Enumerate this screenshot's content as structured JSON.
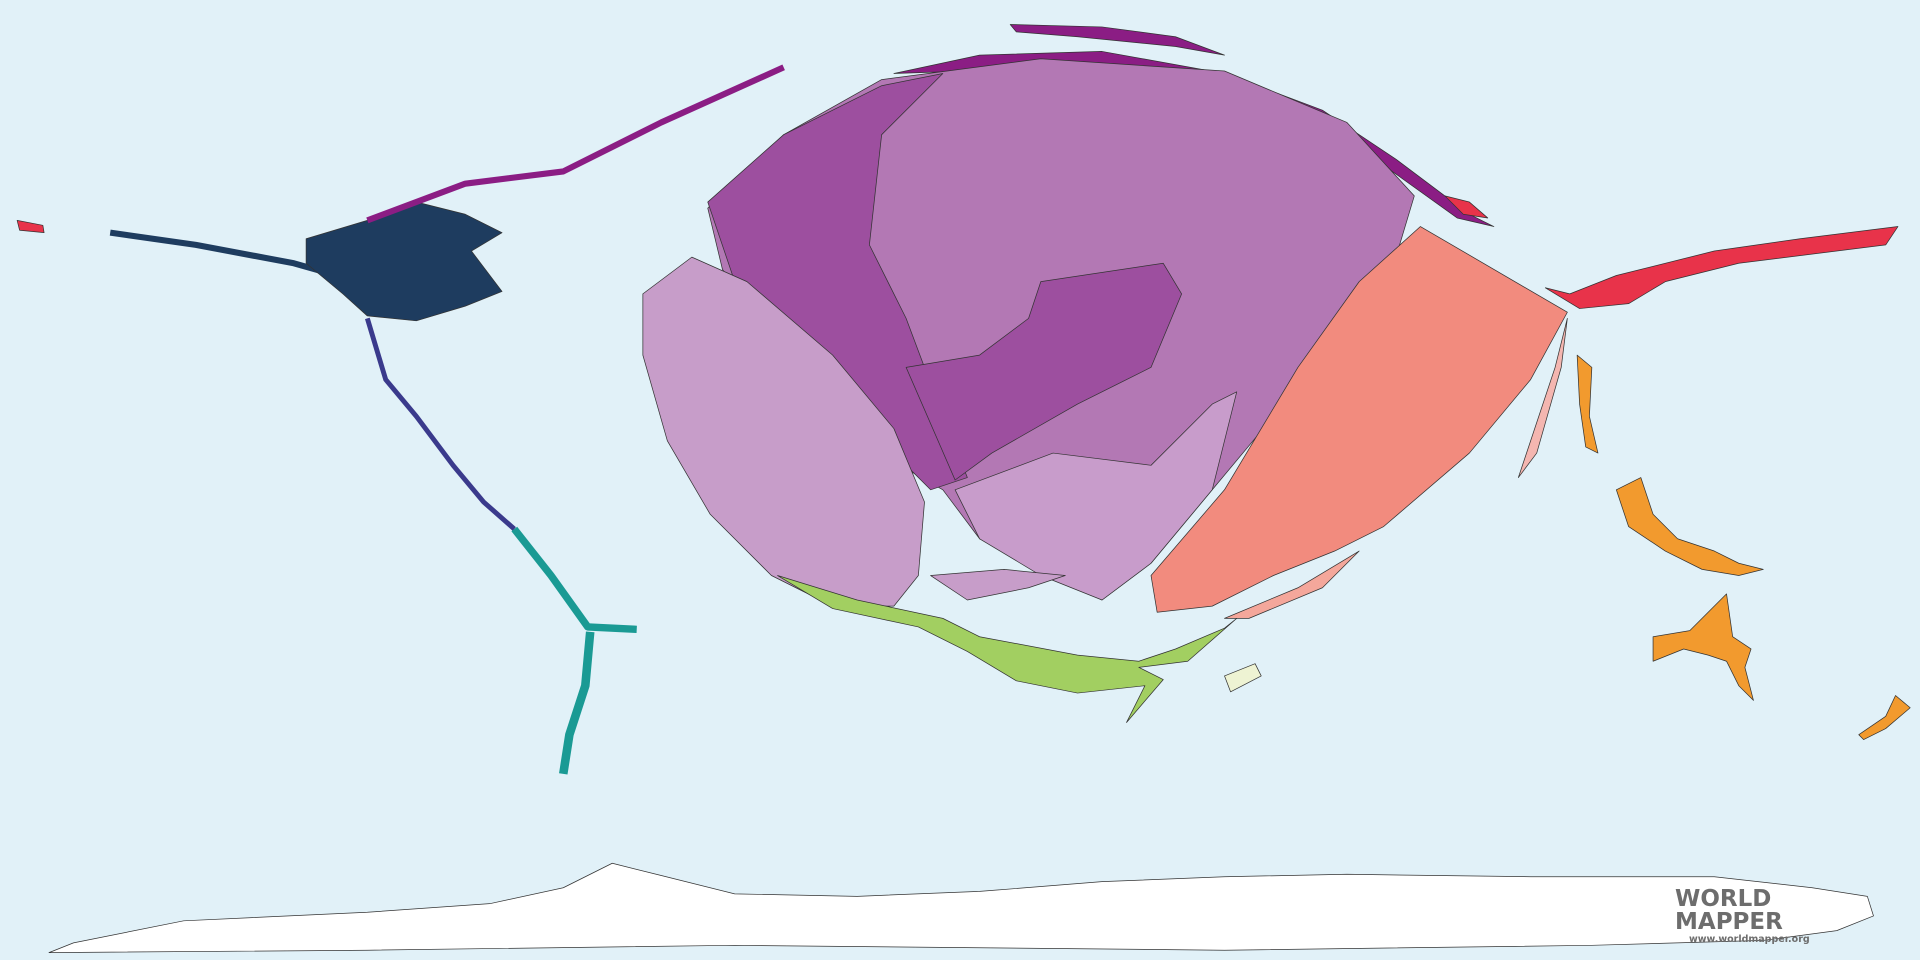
{
  "logo": {
    "line1": "WORLD",
    "line2": "MAPPER",
    "url": "www.worldmapper.org"
  },
  "map": {
    "type": "cartogram",
    "colors": {
      "ocean": "#e1f1f8",
      "asia_dark": "#9d4f9f",
      "asia_mid": "#b378b4",
      "asia_light": "#c79dc9",
      "africa": "#f28b7e",
      "green_region": "#a2cf61",
      "red_region": "#e8334a",
      "oceania": "#f29a2e",
      "north_america": "#1e3c5f",
      "central_america": "#3a3a8c",
      "south_america": "#1a9a94",
      "magenta_region": "#8b1d84",
      "antarctica": "#ffffff"
    }
  }
}
